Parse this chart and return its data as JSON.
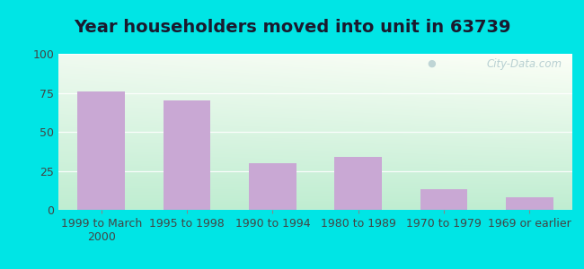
{
  "title": "Year householders moved into unit in 63739",
  "categories": [
    "1999 to March\n2000",
    "1995 to 1998",
    "1990 to 1994",
    "1980 to 1989",
    "1970 to 1979",
    "1969 or earlier"
  ],
  "values": [
    76,
    70,
    30,
    34,
    13,
    8
  ],
  "bar_color": "#c9a8d4",
  "ylim": [
    0,
    100
  ],
  "yticks": [
    0,
    25,
    50,
    75,
    100
  ],
  "background_outer": "#00e5e5",
  "bg_top_left": "#e8f8e8",
  "bg_top_right": "#f0faf8",
  "bg_bottom_left": "#b8eec8",
  "bg_bottom_right": "#ddf5e8",
  "watermark": "City-Data.com",
  "title_fontsize": 14,
  "tick_fontsize": 9,
  "bar_width": 0.55
}
